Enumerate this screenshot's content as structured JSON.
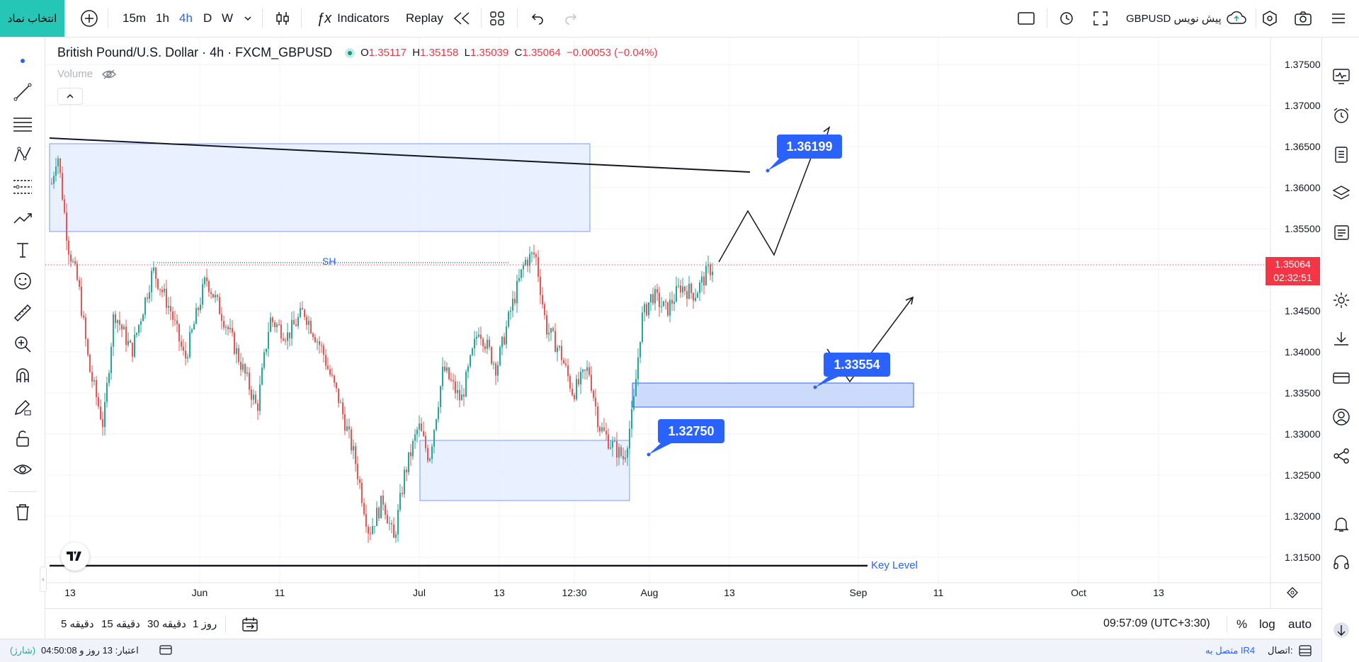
{
  "toolbar": {
    "symbol_search": "انتخاب نماد",
    "intervals": [
      "15m",
      "1h",
      "4h",
      "D",
      "W"
    ],
    "active_interval": "4h",
    "indicators_label": "Indicators",
    "replay_label": "Replay",
    "layout_title": "GBPUSD پیش نویس"
  },
  "legend": {
    "title": "British Pound/U.S. Dollar · 4h · FXCM_GBPUSD",
    "o_label": "O",
    "o": "1.35117",
    "h_label": "H",
    "h": "1.35158",
    "l_label": "L",
    "l": "1.35039",
    "c_label": "C",
    "c": "1.35064",
    "change": "−0.00053 (−0.04%)",
    "volume_label": "Volume"
  },
  "price_axis": {
    "ticks": [
      "1.37500",
      "1.37000",
      "1.36500",
      "1.36000",
      "1.35500",
      "1.35000",
      "1.34500",
      "1.34000",
      "1.33500",
      "1.33000",
      "1.32500",
      "1.32000",
      "1.31500"
    ],
    "current_price": "1.35064",
    "countdown": "02:32:51"
  },
  "time_axis": {
    "labels": [
      "13",
      "Jun",
      "11",
      "Jul",
      "13",
      "12:30",
      "Aug",
      "13",
      "Sep",
      "11",
      "Oct",
      "13"
    ]
  },
  "annotations": {
    "sh_label": "SH",
    "key_level_label": "Key Level",
    "callout_1": "1.36199",
    "callout_2": "1.33554",
    "callout_3": "1.32750"
  },
  "bottom": {
    "ranges": [
      "5 دقیقه",
      "15 دقیقه",
      "30 دقیقه",
      "1 روز"
    ],
    "clock": "09:57:09 (UTC+3:30)",
    "percent_label": "%",
    "log_label": "log",
    "auto_label": "auto"
  },
  "status": {
    "credit": "اعتبار: 13 روز و 04:50:08",
    "credit_suffix": "(شارژ)",
    "connection_label": "اتصال:",
    "connection_value": "متصل به IR4"
  },
  "colors": {
    "up": "#26a69a",
    "down": "#ef5350",
    "accent": "#2962ff",
    "zone_fill": "#e3ecff",
    "zone_border": "#7a9cf0",
    "brand": "#26c6b7"
  }
}
